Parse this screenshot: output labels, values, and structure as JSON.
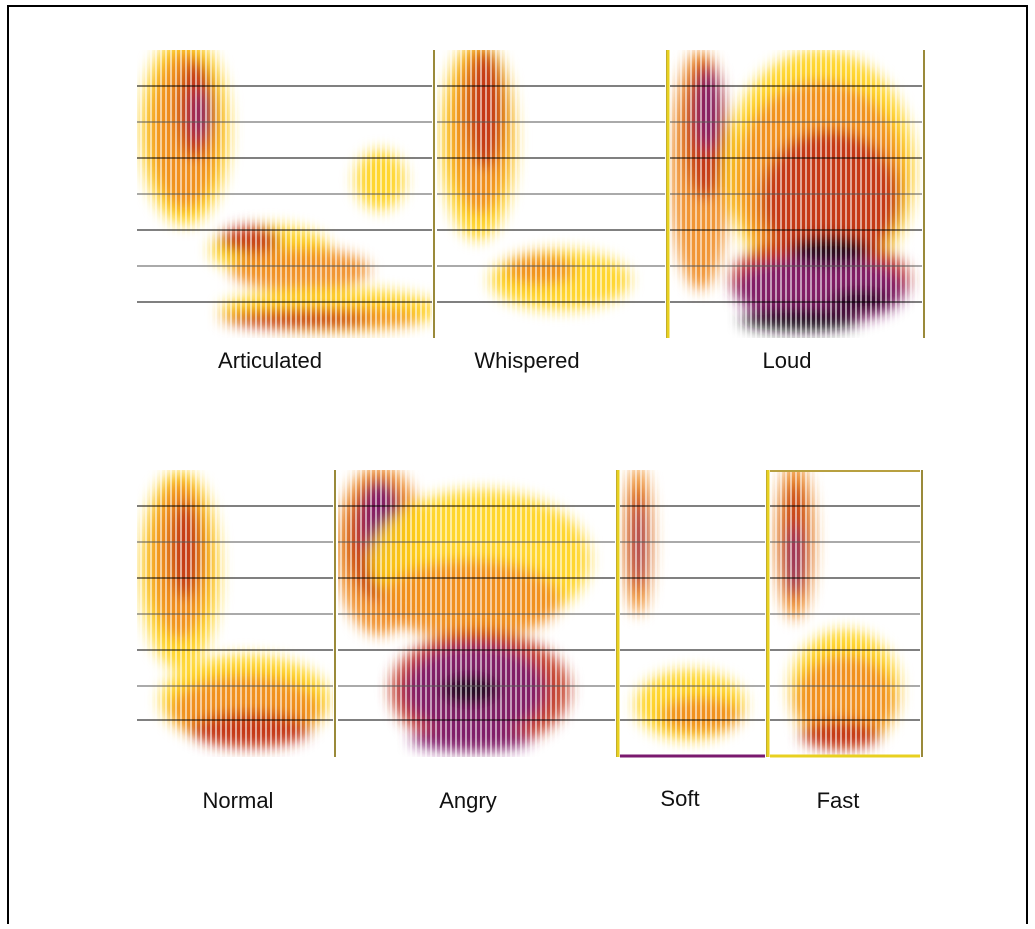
{
  "figure": {
    "panels": [
      {
        "label": "Articulated"
      },
      {
        "label": "Whispered"
      },
      {
        "label": "Loud"
      },
      {
        "label": "Normal"
      },
      {
        "label": "Angry"
      },
      {
        "label": "Soft"
      },
      {
        "label": "Fast"
      }
    ]
  }
}
